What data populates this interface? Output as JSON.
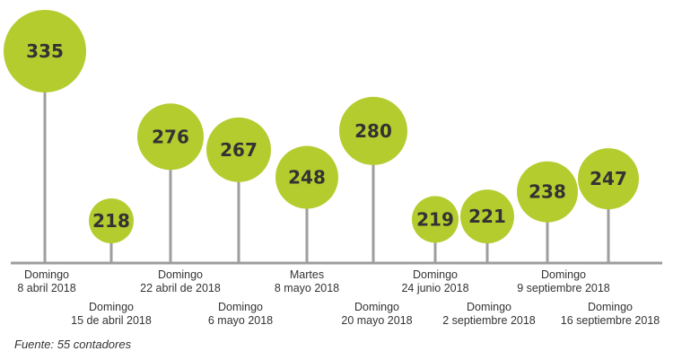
{
  "chart_data": {
    "type": "lollipop",
    "title": "",
    "xlabel": "",
    "ylabel": "",
    "grid": false,
    "legend": "none",
    "categories": [
      [
        "Domingo",
        "8 abril 2018"
      ],
      [
        "Domingo",
        "15 de abril 2018"
      ],
      [
        "Domingo",
        "22 abril de 2018"
      ],
      [
        "Domingo",
        "6 mayo 2018"
      ],
      [
        "Martes",
        "8 mayo 2018"
      ],
      [
        "Domingo",
        "20 mayo 2018"
      ],
      [
        "Domingo",
        "24 junio 2018"
      ],
      [
        "Domingo",
        "2 septiembre 2018"
      ],
      [
        "Domingo",
        "9 septiembre 2018"
      ],
      [
        "Domingo",
        "16 septiembre 2018"
      ]
    ],
    "values": [
      335,
      218,
      276,
      267,
      248,
      280,
      219,
      221,
      238,
      247
    ],
    "label_rows": [
      "top",
      "bottom",
      "top",
      "bottom",
      "top",
      "bottom",
      "top",
      "bottom",
      "top",
      "bottom"
    ],
    "colors": {
      "circle": "#b5cc2f",
      "stem": "#9e9e9e",
      "axis": "#9e9e9e",
      "text": "#333333"
    }
  },
  "source_note": "Fuente: 55 contadores"
}
